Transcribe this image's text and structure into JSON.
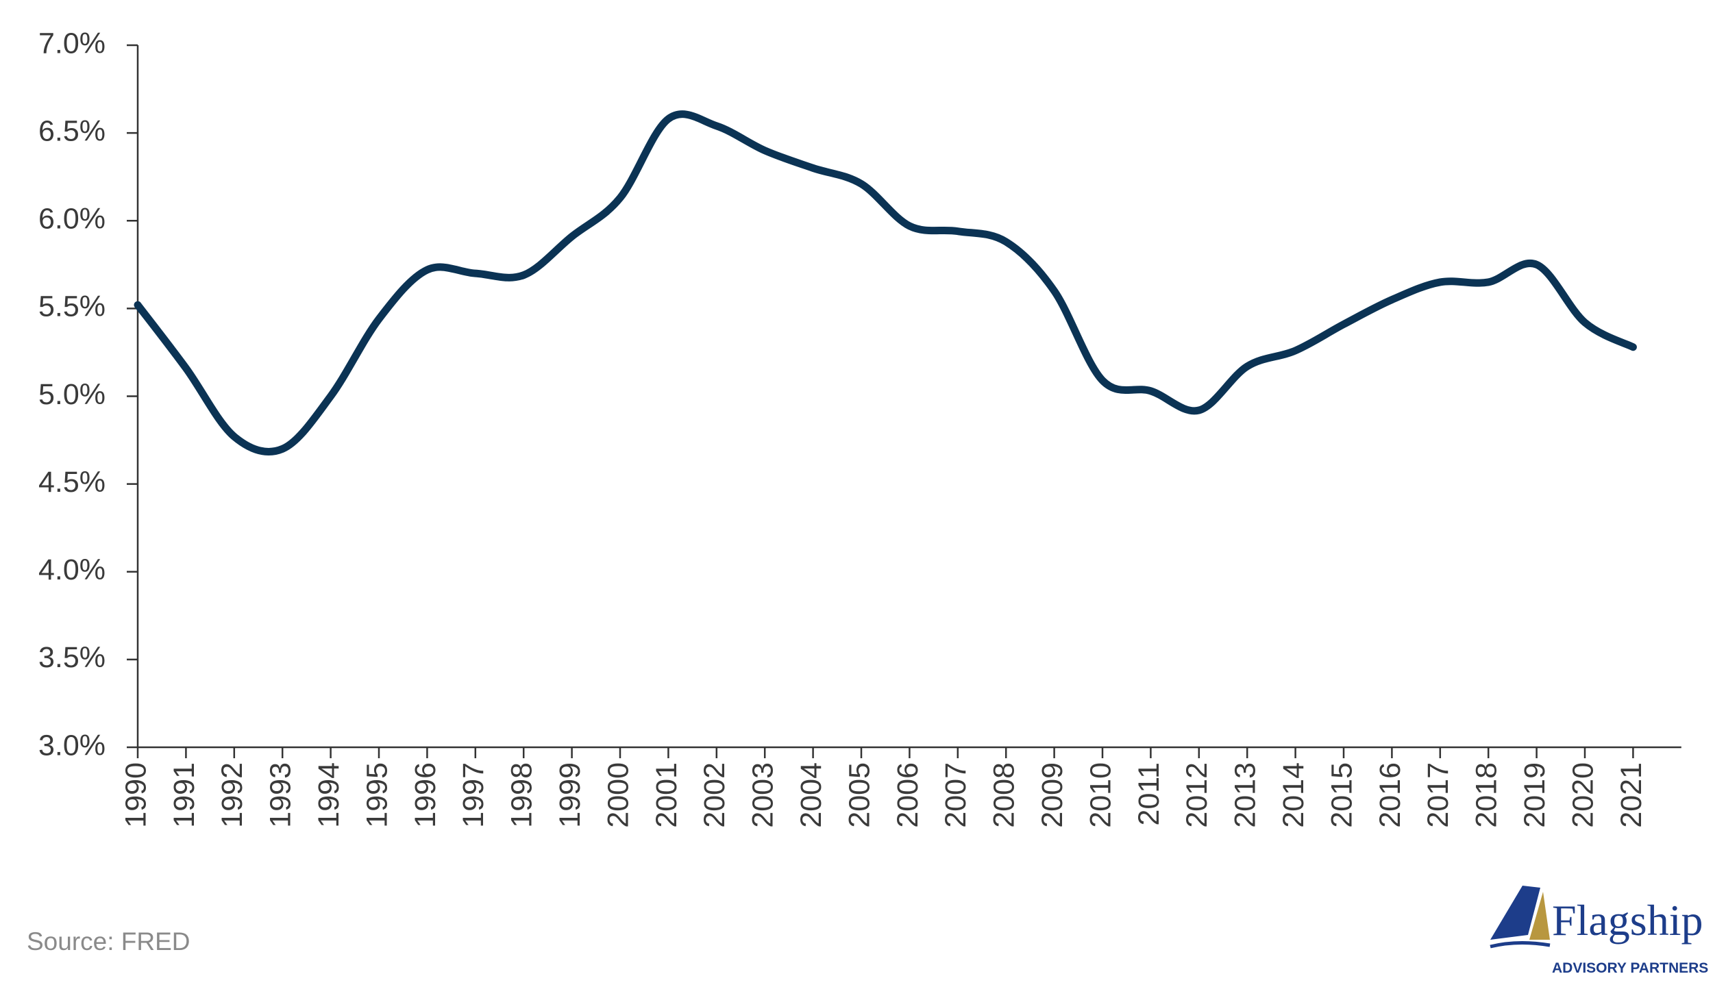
{
  "chart_data": {
    "type": "line",
    "categories": [
      "1990",
      "1991",
      "1992",
      "1993",
      "1994",
      "1995",
      "1996",
      "1997",
      "1998",
      "1999",
      "2000",
      "2001",
      "2002",
      "2003",
      "2004",
      "2005",
      "2006",
      "2007",
      "2008",
      "2009",
      "2010",
      "2011",
      "2012",
      "2013",
      "2014",
      "2015",
      "2016",
      "2017",
      "2018",
      "2019",
      "2020",
      "2021"
    ],
    "series": [
      {
        "color": "#0b3354",
        "values": [
          5.52,
          5.16,
          4.77,
          4.7,
          5.0,
          5.44,
          5.72,
          5.7,
          5.69,
          5.91,
          6.13,
          6.58,
          6.54,
          6.4,
          6.3,
          6.21,
          5.97,
          5.94,
          5.88,
          5.6,
          5.09,
          5.03,
          4.92,
          5.17,
          5.26,
          5.41,
          5.55,
          5.65,
          5.65,
          5.75,
          5.42,
          5.28
        ]
      }
    ],
    "ylim": [
      3,
      7
    ],
    "yticks": [
      {
        "value": 3,
        "label": "3.0%"
      },
      {
        "value": 3.5,
        "label": "3.5%"
      },
      {
        "value": 4,
        "label": "4.0%"
      },
      {
        "value": 4.5,
        "label": "4.5%"
      },
      {
        "value": 5,
        "label": "5.0%"
      },
      {
        "value": 5.5,
        "label": "5.5%"
      },
      {
        "value": 6,
        "label": "6.0%"
      },
      {
        "value": 6.5,
        "label": "6.5%"
      },
      {
        "value": 7,
        "label": "7.0%"
      }
    ],
    "grid": false
  },
  "source": "Source: FRED",
  "logo": {
    "name": "Flagship",
    "tagline": "ADVISORY PARTNERS"
  }
}
